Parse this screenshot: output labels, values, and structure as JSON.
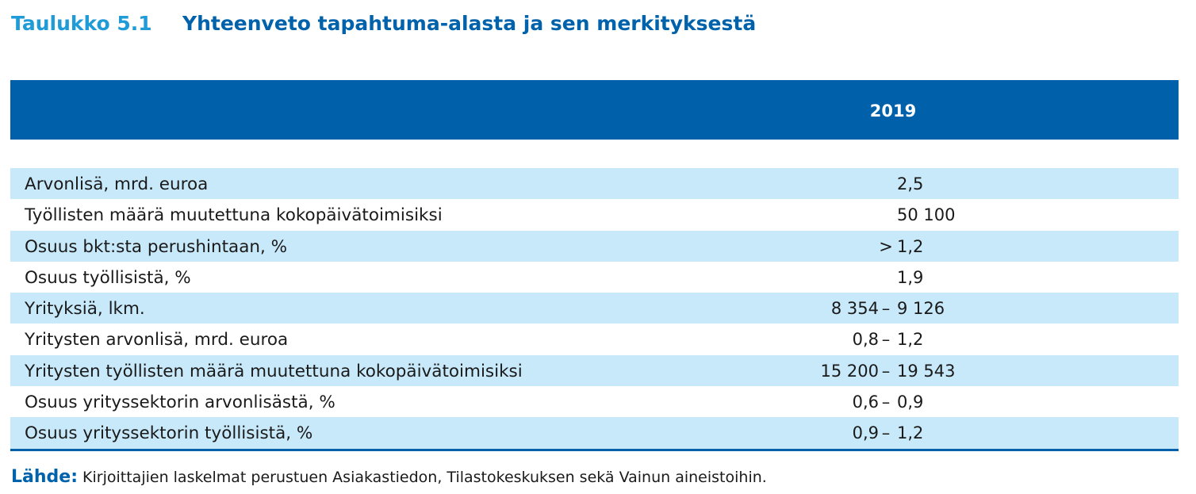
{
  "table": {
    "number": "Taulukko 5.1",
    "title": "Yhteenveto tapahtuma-alasta ja sen merkityksestä",
    "column_header": "2019",
    "rows": [
      {
        "label": "Arvonlisä, mrd. euroa",
        "prefix": "",
        "low": "",
        "sep": "",
        "value": "2,5"
      },
      {
        "label": "Työllisten määrä muutettuna kokopäivätoimisiksi",
        "prefix": "",
        "low": "",
        "sep": "",
        "value": "50 100"
      },
      {
        "label": "Osuus bkt:sta perushintaan, %",
        "prefix": ">",
        "low": "",
        "sep": "",
        "value": "1,2"
      },
      {
        "label": "Osuus työllisistä, %",
        "prefix": "",
        "low": "",
        "sep": "",
        "value": "1,9"
      },
      {
        "label": "Yrityksiä, lkm.",
        "prefix": "",
        "low": "8 354",
        "sep": "–",
        "value": "9 126"
      },
      {
        "label": "Yritysten arvonlisä, mrd. euroa",
        "prefix": "",
        "low": "0,8",
        "sep": "–",
        "value": "1,2"
      },
      {
        "label": "Yritysten työllisten määrä muutettuna kokopäivätoimisiksi",
        "prefix": "",
        "low": "15 200",
        "sep": "–",
        "value": "19 543"
      },
      {
        "label": "Osuus yrityssektorin arvonlisästä, %",
        "prefix": "",
        "low": "0,6",
        "sep": "–",
        "value": "0,9"
      },
      {
        "label": "Osuus yrityssektorin työllisistä, %",
        "prefix": "",
        "low": "0,9",
        "sep": "–",
        "value": "1,2"
      }
    ],
    "shading_color": "#c8e9fa",
    "header_color": "#0061aa"
  },
  "source": {
    "label": "Lähde:",
    "text": "Kirjoittajien laskelmat perustuen Asiakastiedon, Tilastokeskuksen sekä Vainun aineistoihin."
  }
}
